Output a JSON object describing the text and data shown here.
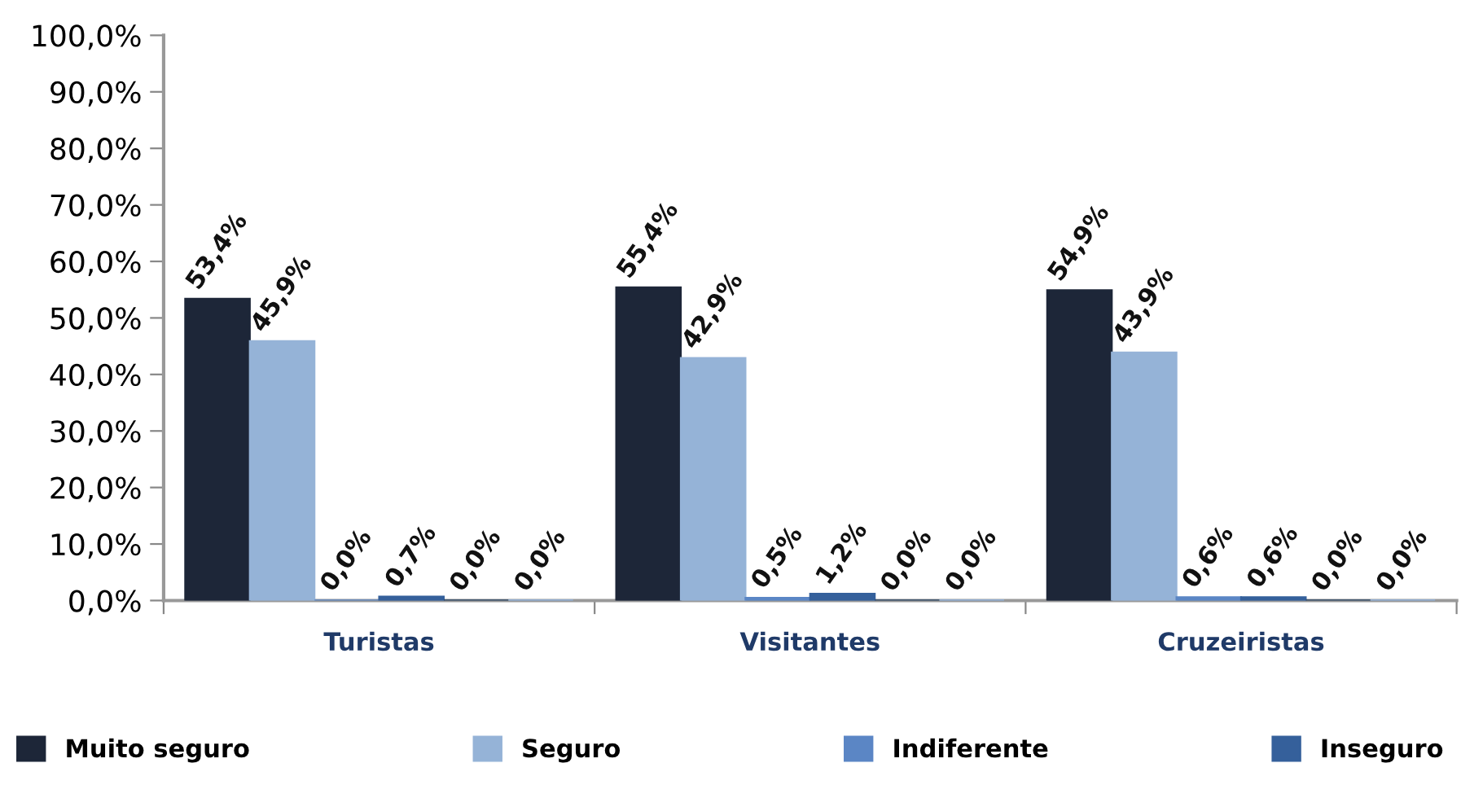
{
  "chart_data": {
    "type": "bar",
    "categories": [
      "Turistas",
      "Visitantes",
      "Cruzeiristas"
    ],
    "series": [
      {
        "name": "Muito seguro",
        "color": "#1d2638",
        "values": [
          53.4,
          55.4,
          54.9
        ],
        "value_labels": [
          "53,4%",
          "55,4%",
          "54,9%"
        ]
      },
      {
        "name": "Seguro",
        "color": "#95b3d7",
        "values": [
          45.9,
          42.9,
          43.9
        ],
        "value_labels": [
          "45,9%",
          "42,9%",
          "43,9%"
        ]
      },
      {
        "name": "Indiferente",
        "color": "#5b86c5",
        "values": [
          0.0,
          0.5,
          0.6
        ],
        "value_labels": [
          "0,0%",
          "0,5%",
          "0,6%"
        ]
      },
      {
        "name": "Inseguro",
        "color": "#35609b",
        "values": [
          0.7,
          1.2,
          0.6
        ],
        "value_labels": [
          "0,7%",
          "1,2%",
          "0,6%"
        ]
      },
      {
        "color": "#254061",
        "values": [
          0.0,
          0.0,
          0.0
        ],
        "value_labels": [
          "0,0%",
          "0,0%",
          "0,0%"
        ]
      },
      {
        "color": "#8eb4e3",
        "values": [
          0.0,
          0.0,
          0.0
        ],
        "value_labels": [
          "0,0%",
          "0,0%",
          "0,0%"
        ]
      }
    ],
    "ylim": [
      0,
      100
    ],
    "yticks": [
      {
        "value": 0,
        "label": "0,0%"
      },
      {
        "value": 10,
        "label": "10,0%"
      },
      {
        "value": 20,
        "label": "20,0%"
      },
      {
        "value": 30,
        "label": "30,0%"
      },
      {
        "value": 40,
        "label": "40,0%"
      },
      {
        "value": 50,
        "label": "50,0%"
      },
      {
        "value": 60,
        "label": "60,0%"
      },
      {
        "value": 70,
        "label": "70,0%"
      },
      {
        "value": 80,
        "label": "80,0%"
      },
      {
        "value": 90,
        "label": "90,0%"
      },
      {
        "value": 100,
        "label": "100,0%"
      }
    ],
    "grid": false,
    "legend": "bottom"
  }
}
